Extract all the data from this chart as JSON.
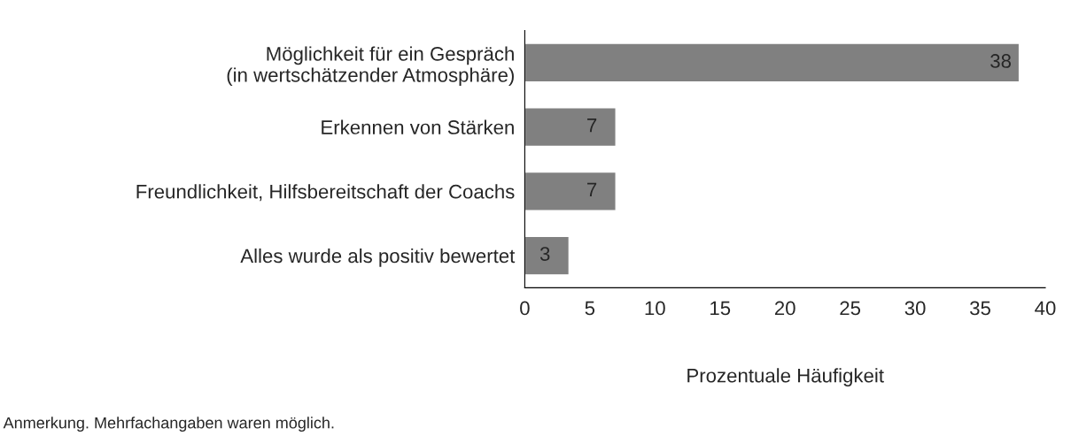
{
  "chart_data": {
    "type": "bar",
    "orientation": "horizontal",
    "categories": [
      "Möglichkeit für ein Gespräch\n(in wertschätzender Atmosphäre)",
      "Erkennen von Stärken",
      "Freundlichkeit, Hilfsbereitschaft der Coachs",
      "Alles wurde als positiv bewertet"
    ],
    "values": [
      38,
      7,
      7,
      3.4
    ],
    "value_labels": [
      "38",
      "7",
      "7",
      "3"
    ],
    "color": "#808080",
    "xlim": [
      0,
      40
    ],
    "xticks": [
      0,
      5,
      10,
      15,
      20,
      25,
      30,
      35,
      40
    ],
    "xlabel": "Prozentuale Häufigkeit",
    "annotations": [
      "Anmerkung. Mehrfachangaben waren möglich."
    ],
    "grid": false,
    "legend": false
  }
}
